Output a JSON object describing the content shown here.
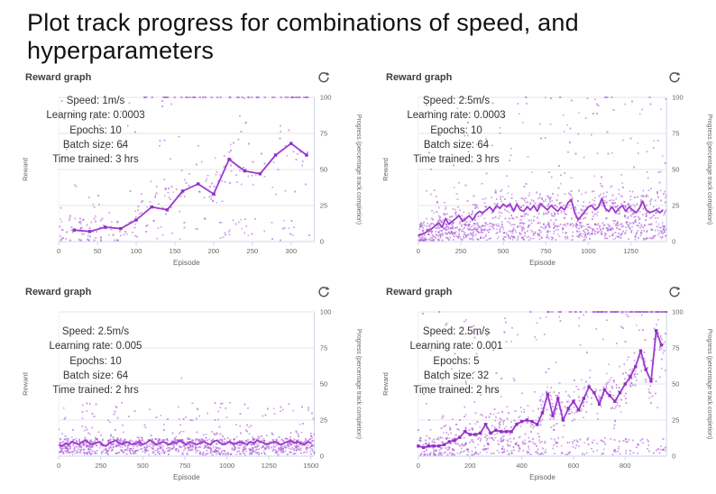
{
  "page_title": "Plot track progress for combinations of speed, and hyperparameters",
  "colors": {
    "line": "#9d3bcd",
    "line_marker": "#8f2fc4",
    "scatter": "#a855d6",
    "grid": "#e6e6e6",
    "axis": "#ccd6eb",
    "tick_text": "#666666",
    "axis_title_text": "#666666",
    "annotation_text": "#333333",
    "header_text": "#3b4045",
    "icon": "#555555"
  },
  "chart_data": [
    {
      "type": "scatter+line",
      "card_title": "Reward graph",
      "icon": "refresh-icon",
      "annotations": [
        "Speed: 1m/s",
        "Learning rate: 0.0003",
        "Epochs: 10",
        "Batch size: 64",
        "Time trained: 3 hrs"
      ],
      "xlabel": "Episode",
      "ylabel_left": "Reward",
      "ylabel_right": "Progress (percentage track completion)",
      "x_ticks": [
        0,
        50,
        100,
        150,
        200,
        250,
        300
      ],
      "x_max": 330,
      "y_ticks": [
        0,
        25,
        50,
        75,
        100
      ],
      "y_max": 100,
      "line": {
        "x_start": 20,
        "x_step": 20,
        "values": [
          8,
          7,
          10,
          9,
          15,
          24,
          22,
          35,
          40,
          33,
          57,
          49,
          47,
          60,
          68,
          60
        ]
      },
      "scatter": {
        "seed": 11,
        "count": 290,
        "low_frac": 0.28,
        "low_band": 15,
        "corr": 1.0,
        "spread": 18,
        "high_frac": 0.16,
        "high_min": 28,
        "high_max": 100,
        "top_row": [
          {
            "from": 100,
            "to": 330,
            "count": 52
          }
        ],
        "outliers": []
      }
    },
    {
      "type": "scatter+line",
      "card_title": "Reward graph",
      "icon": "refresh-icon",
      "annotations": [
        "Speed: 2.5m/s",
        "Learning rate: 0.0003",
        "Epochs: 10",
        "Batch size: 64",
        "Time trained: 3 hrs"
      ],
      "xlabel": "Episode",
      "ylabel_left": "Reward",
      "ylabel_right": "Progress (percentage track completion)",
      "x_ticks": [
        0,
        250,
        500,
        750,
        1000,
        1250
      ],
      "x_max": 1460,
      "y_ticks": [
        0,
        25,
        50,
        75,
        100
      ],
      "y_max": 100,
      "line": {
        "x_start": 0,
        "x_step": 20,
        "values": [
          4,
          5,
          6,
          8,
          9,
          11,
          13,
          10,
          16,
          12,
          14,
          16,
          18,
          14,
          16,
          18,
          15,
          19,
          21,
          20,
          22,
          24,
          21,
          25,
          23,
          26,
          24,
          26,
          21,
          26,
          22,
          21,
          24,
          22,
          25,
          21,
          26,
          24,
          22,
          25,
          23,
          21,
          24,
          22,
          27,
          29,
          20,
          15,
          18,
          21,
          24,
          25,
          22,
          24,
          30,
          23,
          21,
          24,
          20,
          23,
          25,
          21,
          24,
          22,
          20,
          23,
          28,
          22,
          20,
          21,
          22,
          20,
          22
        ]
      },
      "scatter": {
        "seed": 22,
        "count": 1250,
        "low_frac": 0.45,
        "low_band": 12,
        "corr": 1.0,
        "spread": 13,
        "high_frac": 0.09,
        "high_min": 28,
        "high_max": 100,
        "top_row": [
          {
            "from": 300,
            "to": 1460,
            "count": 6
          }
        ],
        "outliers": []
      }
    },
    {
      "type": "scatter+line",
      "card_title": "Reward graph",
      "icon": "refresh-icon",
      "annotations": [
        "Speed: 2.5m/s",
        "Learning rate: 0.005",
        "Epochs: 10",
        "Batch size: 64",
        "Time trained: 2 hrs"
      ],
      "xlabel": "Episode",
      "ylabel_left": "Reward",
      "ylabel_right": "Progress (percentage track completion)",
      "x_ticks": [
        0,
        250,
        500,
        750,
        1000,
        1250,
        1500
      ],
      "x_max": 1520,
      "y_ticks": [
        0,
        25,
        50,
        75,
        100
      ],
      "y_max": 100,
      "line": {
        "x_start": 0,
        "x_step": 20,
        "values": [
          8,
          7,
          9,
          8,
          10,
          9,
          8,
          10,
          11,
          9,
          8,
          9,
          10,
          8,
          7,
          9,
          10,
          11,
          9,
          8,
          10,
          9,
          8,
          9,
          10,
          8,
          9,
          11,
          10,
          8,
          9,
          10,
          9,
          8,
          10,
          9,
          11,
          9,
          8,
          10,
          9,
          8,
          9,
          10,
          9,
          8,
          10,
          11,
          9,
          8,
          9,
          10,
          8,
          9,
          10,
          9,
          8,
          10,
          9,
          11,
          10,
          9,
          8,
          9,
          10,
          9,
          8,
          9,
          10,
          11,
          9,
          10,
          9,
          8,
          10,
          9
        ]
      },
      "scatter": {
        "seed": 33,
        "count": 1100,
        "low_frac": 0.72,
        "low_band": 11,
        "corr": 1.0,
        "spread": 7,
        "high_frac": 0.1,
        "high_min": 13,
        "high_max": 37,
        "top_row": [],
        "outliers": [
          [
            730,
            54
          ],
          [
            1280,
            33
          ],
          [
            950,
            31
          ]
        ]
      }
    },
    {
      "type": "scatter+line",
      "card_title": "Reward graph",
      "icon": "refresh-icon",
      "annotations": [
        "Speed: 2.5m/s",
        "Learning rate: 0.001",
        "Epochs: 5",
        "Batch size: 32",
        "Time trained: 2 hrs"
      ],
      "xlabel": "Episode",
      "ylabel_left": "Reward",
      "ylabel_right": "Progress (percentage track completion)",
      "x_ticks": [
        0,
        200,
        400,
        600,
        800
      ],
      "x_max": 960,
      "y_ticks": [
        0,
        25,
        50,
        75,
        100
      ],
      "y_max": 100,
      "line": {
        "x_start": 0,
        "x_step": 20,
        "values": [
          7,
          6,
          7,
          7,
          7,
          8,
          10,
          11,
          13,
          17,
          15,
          15,
          16,
          22,
          16,
          18,
          17,
          17,
          17,
          22,
          24,
          25,
          24,
          22,
          30,
          43,
          28,
          40,
          25,
          33,
          38,
          32,
          40,
          48,
          44,
          36,
          46,
          42,
          38,
          44,
          50,
          55,
          62,
          73,
          60,
          52,
          87,
          77
        ]
      },
      "scatter": {
        "seed": 44,
        "count": 820,
        "low_frac": 0.34,
        "low_band": 12,
        "corr": 1.0,
        "spread": 16,
        "high_frac": 0.12,
        "high_min": 28,
        "high_max": 100,
        "top_row": [
          {
            "from": 430,
            "to": 960,
            "count": 35
          },
          {
            "from": 690,
            "to": 960,
            "count": 55
          }
        ],
        "outliers": []
      }
    }
  ]
}
